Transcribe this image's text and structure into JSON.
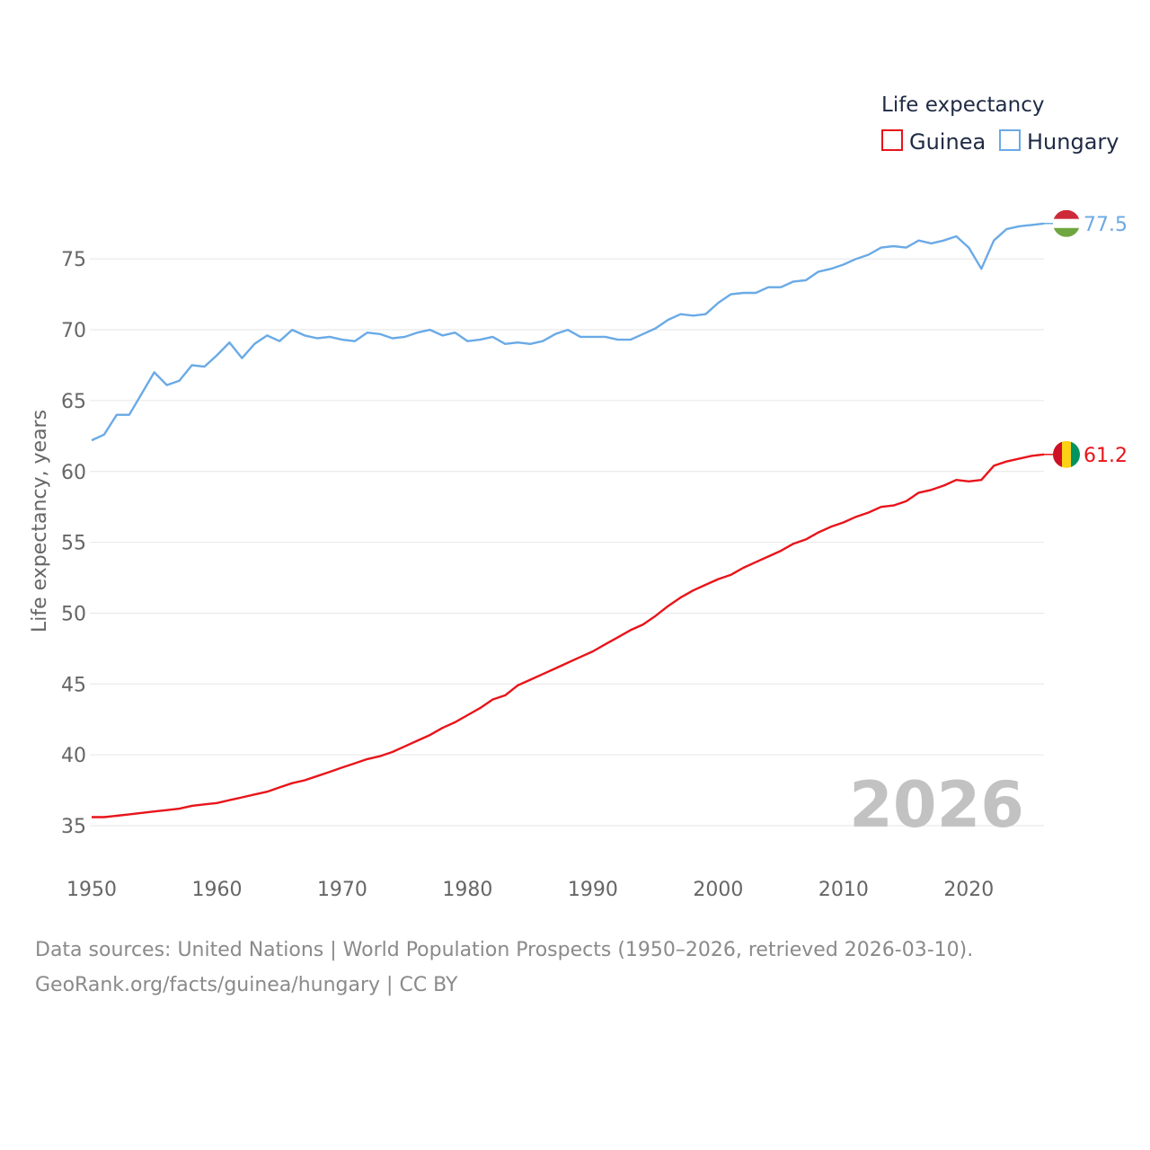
{
  "chart_data": {
    "type": "line",
    "legend_title": "Life expectancy",
    "ylabel": "Life expectancy, years",
    "xlabel": "",
    "xlim": [
      1950,
      2026
    ],
    "ylim": [
      32.5,
      79
    ],
    "x_ticks": [
      1950,
      1960,
      1970,
      1980,
      1990,
      2000,
      2010,
      2020
    ],
    "y_ticks": [
      35,
      40,
      45,
      50,
      55,
      60,
      65,
      70,
      75
    ],
    "legend_placement": "top-right",
    "year_watermark": "2026",
    "x": [
      1950,
      1951,
      1952,
      1953,
      1954,
      1955,
      1956,
      1957,
      1958,
      1959,
      1960,
      1961,
      1962,
      1963,
      1964,
      1965,
      1966,
      1967,
      1968,
      1969,
      1970,
      1971,
      1972,
      1973,
      1974,
      1975,
      1976,
      1977,
      1978,
      1979,
      1980,
      1981,
      1982,
      1983,
      1984,
      1985,
      1986,
      1987,
      1988,
      1989,
      1990,
      1991,
      1992,
      1993,
      1994,
      1995,
      1996,
      1997,
      1998,
      1999,
      2000,
      2001,
      2002,
      2003,
      2004,
      2005,
      2006,
      2007,
      2008,
      2009,
      2010,
      2011,
      2012,
      2013,
      2014,
      2015,
      2016,
      2017,
      2018,
      2019,
      2020,
      2021,
      2022,
      2023,
      2024,
      2025,
      2026
    ],
    "series": [
      {
        "name": "Guinea",
        "color": "#e8141a",
        "flag": "guinea-flag",
        "end_label": "61.2",
        "values": [
          35.6,
          35.6,
          35.7,
          35.8,
          35.9,
          36.0,
          36.1,
          36.2,
          36.4,
          36.5,
          36.6,
          36.8,
          37.0,
          37.2,
          37.4,
          37.7,
          38.0,
          38.2,
          38.5,
          38.8,
          39.1,
          39.4,
          39.7,
          39.9,
          40.2,
          40.6,
          41.0,
          41.4,
          41.9,
          42.3,
          42.8,
          43.3,
          43.9,
          44.2,
          44.9,
          45.3,
          45.7,
          46.1,
          46.5,
          46.9,
          47.3,
          47.8,
          48.3,
          48.8,
          49.2,
          49.8,
          50.5,
          51.1,
          51.6,
          52.0,
          52.4,
          52.7,
          53.2,
          53.6,
          54.0,
          54.4,
          54.9,
          55.2,
          55.7,
          56.1,
          56.4,
          56.8,
          57.1,
          57.5,
          57.6,
          57.9,
          58.5,
          58.7,
          59.0,
          59.4,
          59.3,
          59.4,
          60.4,
          60.7,
          60.9,
          61.1,
          61.2
        ]
      },
      {
        "name": "Hungary",
        "color": "#6aaae6",
        "flag": "hungary-flag",
        "end_label": "77.5",
        "values": [
          62.2,
          62.6,
          64.0,
          64.0,
          65.5,
          67.0,
          66.1,
          66.4,
          67.5,
          67.4,
          68.2,
          69.1,
          68.0,
          69.0,
          69.6,
          69.2,
          70.0,
          69.6,
          69.4,
          69.5,
          69.3,
          69.2,
          69.8,
          69.7,
          69.4,
          69.5,
          69.8,
          70.0,
          69.6,
          69.8,
          69.2,
          69.3,
          69.5,
          69.0,
          69.1,
          69.0,
          69.2,
          69.7,
          70.0,
          69.5,
          69.5,
          69.5,
          69.3,
          69.3,
          69.7,
          70.1,
          70.7,
          71.1,
          71.0,
          71.1,
          71.9,
          72.5,
          72.6,
          72.6,
          73.0,
          73.0,
          73.4,
          73.5,
          74.1,
          74.3,
          74.6,
          75.0,
          75.3,
          75.8,
          75.9,
          75.8,
          76.3,
          76.1,
          76.3,
          76.6,
          75.8,
          74.3,
          76.3,
          77.1,
          77.3,
          77.4,
          77.5
        ]
      }
    ]
  },
  "footer": {
    "line1": "Data sources: United Nations | World Population Prospects (1950–2026, retrieved 2026-03-10).",
    "line2": "GeoRank.org/facts/guinea/hungary | CC BY"
  }
}
